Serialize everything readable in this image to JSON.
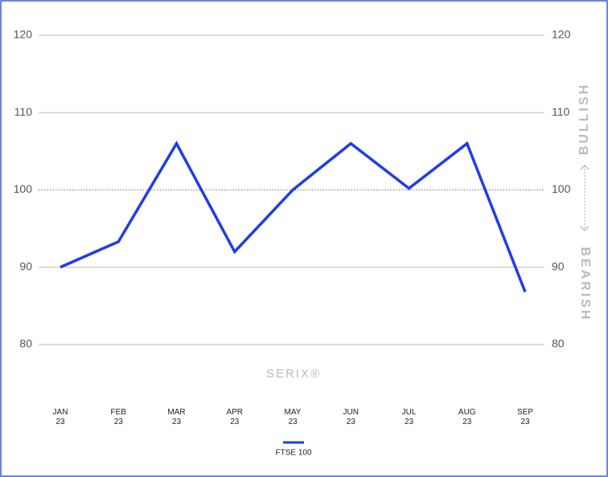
{
  "chart_data": {
    "type": "line",
    "categories": [
      "JAN 23",
      "FEB 23",
      "MAR 23",
      "APR 23",
      "MAY 23",
      "JUN 23",
      "JUL 23",
      "AUG 23",
      "SEP 23"
    ],
    "series": [
      {
        "name": "FTSE 100",
        "color": "#1f3de6",
        "values": [
          90,
          93.3,
          106,
          92,
          100,
          106,
          100.2,
          106,
          86.8
        ]
      }
    ],
    "ylim": [
      80,
      120
    ],
    "yticks": [
      80,
      90,
      100,
      110,
      120
    ],
    "y2lim": [
      80,
      120
    ],
    "y2ticks": [
      80,
      90,
      100,
      110,
      120
    ],
    "reference_value": 100,
    "upper_label": "BULLISH",
    "lower_label": "BEARISH",
    "watermark": "SERIX®",
    "grid": true,
    "legend": "bottom"
  }
}
